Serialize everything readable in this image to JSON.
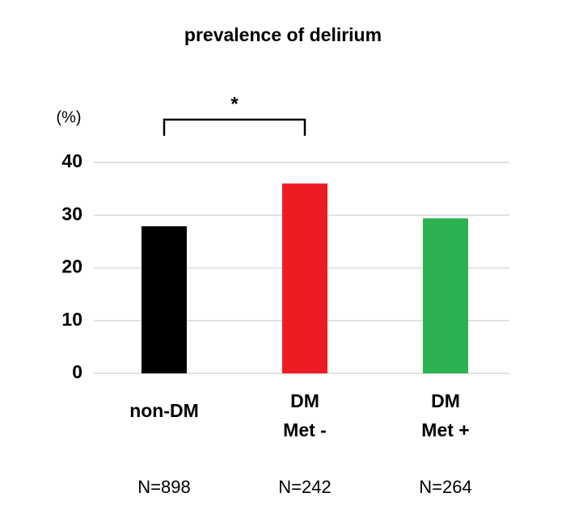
{
  "chart_data": {
    "type": "bar",
    "title": "prevalence of delirium",
    "y_unit": "(%)",
    "categories": [
      [
        "non-DM"
      ],
      [
        "DM",
        "Met -"
      ],
      [
        "DM",
        "Met +"
      ]
    ],
    "values": [
      27.9,
      36,
      29.4
    ],
    "colors": [
      "#000000",
      "#ed1c24",
      "#2bb150"
    ],
    "n_labels": [
      "N=898",
      "N=242",
      "N=264"
    ],
    "significance": {
      "label": "*",
      "from": 0,
      "to": 1
    },
    "ylim": [
      0,
      40
    ],
    "yticks": [
      0,
      10,
      20,
      30,
      40
    ],
    "grid": true
  }
}
